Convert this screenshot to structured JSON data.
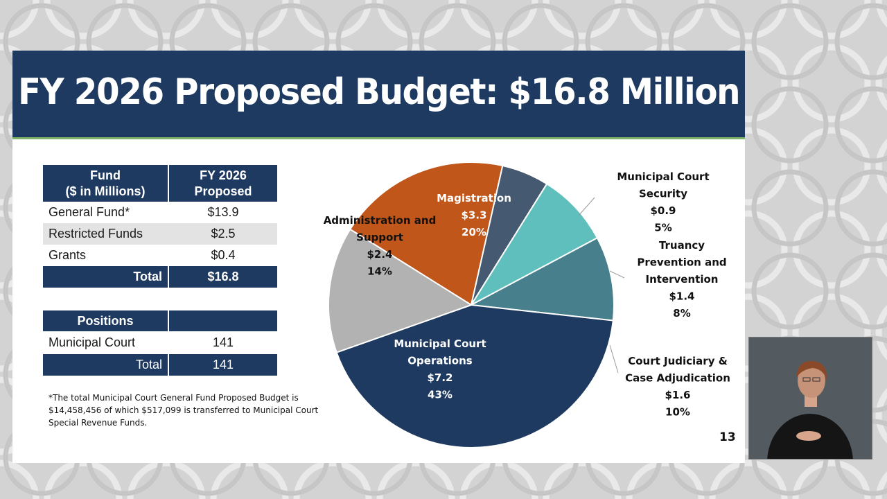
{
  "slide": {
    "title": "FY 2026 Proposed Budget: $16.8 Million",
    "page_number": "13"
  },
  "fund_table": {
    "header": [
      "Fund\n($ in Millions)",
      "FY 2026\nProposed"
    ],
    "rows": [
      {
        "label": "General Fund*",
        "value": "$13.9"
      },
      {
        "label": "Restricted Funds",
        "value": "$2.5"
      },
      {
        "label": "Grants",
        "value": "$0.4"
      }
    ],
    "total": {
      "label": "Total",
      "value": "$16.8"
    }
  },
  "positions_table": {
    "header": [
      "Positions",
      ""
    ],
    "rows": [
      {
        "label": "Municipal Court",
        "value": "141"
      }
    ],
    "total": {
      "label": "Total",
      "value": "141"
    }
  },
  "footnote": "*The total Municipal Court General Fund Proposed Budget is $14,458,456 of which $517,099 is transferred to Municipal Court Special Revenue Funds.",
  "chart_data": {
    "type": "pie",
    "title": "",
    "start": "Magistration slice begins at the 11 o'clock position, slices proceed clockwise",
    "slices": [
      {
        "name": "Magistration",
        "value": 3.3,
        "display_value": "$3.3",
        "percent": "20%",
        "color": "#c0561a",
        "label_color": "#ffffff",
        "label_position": "inside"
      },
      {
        "name": "Municipal Court Security",
        "value": 0.9,
        "display_value": "$0.9",
        "percent": "5%",
        "color": "#455a70",
        "label_color": "#111111",
        "label_position": "outside"
      },
      {
        "name": "Truancy Prevention and Intervention",
        "value": 1.4,
        "display_value": "$1.4",
        "percent": "8%",
        "color": "#5fbfbd",
        "label_color": "#111111",
        "label_position": "outside"
      },
      {
        "name": "Court Judiciary & Case Adjudication",
        "value": 1.6,
        "display_value": "$1.6",
        "percent": "10%",
        "color": "#477f8c",
        "label_color": "#111111",
        "label_position": "outside"
      },
      {
        "name": "Municipal Court Operations",
        "value": 7.2,
        "display_value": "$7.2",
        "percent": "43%",
        "color": "#1e3a60",
        "label_color": "#ffffff",
        "label_position": "inside"
      },
      {
        "name": "Administration and Support",
        "value": 2.4,
        "display_value": "$2.4",
        "percent": "14%",
        "color": "#b2b2b2",
        "label_color": "#111111",
        "label_position": "inside"
      }
    ]
  },
  "interpreter_video": {
    "description": ""
  }
}
